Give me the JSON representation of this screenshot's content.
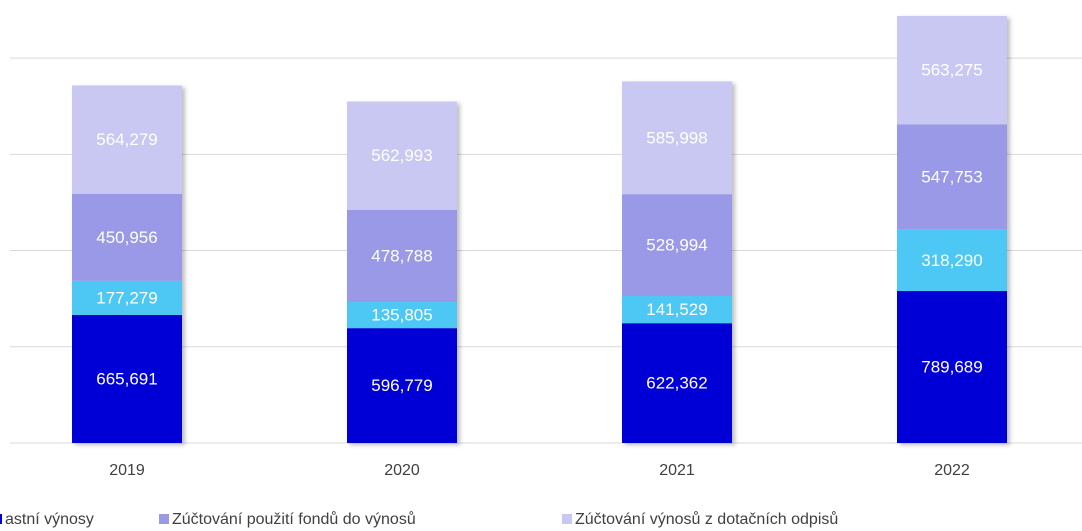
{
  "chart_data": {
    "type": "stacked_bar",
    "categories": [
      "2019",
      "2020",
      "2021",
      "2022"
    ],
    "series": [
      {
        "name": "astní výnosy",
        "color": "#0000d6",
        "values": [
          665691,
          596779,
          622362,
          789689
        ],
        "value_labels": [
          "665,691",
          "596,779",
          "622,362",
          "789,689"
        ]
      },
      {
        "name": null,
        "color": "#4dc8f5",
        "values": [
          177279,
          135805,
          141529,
          318290
        ],
        "value_labels": [
          "177,279",
          "135,805",
          "141,529",
          "318,290"
        ]
      },
      {
        "name": "Zúčtování použití fondů do výnosů",
        "color": "#9999e8",
        "values": [
          450956,
          478788,
          528994,
          547753
        ],
        "value_labels": [
          "450,956",
          "478,788",
          "528,994",
          "547,753"
        ]
      },
      {
        "name": "Zúčtování výnosů z dotačních odpisů",
        "color": "#c8c8f2",
        "values": [
          564279,
          562993,
          585998,
          563275
        ],
        "value_labels": [
          "564,279",
          "562,993",
          "585,998",
          "563,275"
        ]
      }
    ],
    "ylim": [
      0,
      2250000
    ],
    "yticks": [
      0,
      500000,
      1000000,
      1500000,
      2000000
    ],
    "grid": true
  }
}
